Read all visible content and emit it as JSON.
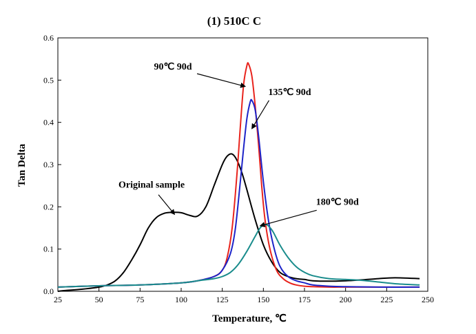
{
  "chart_data": {
    "type": "line",
    "title": "(1) 510C  C",
    "xlabel": "Temperature, ℃",
    "ylabel": "Tan Delta",
    "xlim": [
      25,
      250
    ],
    "ylim": [
      0,
      0.6
    ],
    "xticks": [
      25,
      50,
      75,
      100,
      125,
      150,
      175,
      200,
      225,
      250
    ],
    "yticks": [
      0.0,
      0.1,
      0.2,
      0.3,
      0.4,
      0.5,
      0.6
    ],
    "ytick_labels": [
      "0.0",
      "0.1",
      "0.2",
      "0.3",
      "0.4",
      "0.5",
      "0.6"
    ],
    "grid": false,
    "legend": "none",
    "series": [
      {
        "color": "#000000",
        "x": [
          25,
          30,
          40,
          50,
          55,
          60,
          65,
          70,
          75,
          80,
          85,
          90,
          95,
          100,
          105,
          110,
          115,
          120,
          125,
          128,
          131,
          134,
          137,
          140,
          145,
          150,
          155,
          160,
          165,
          170,
          175,
          180,
          190,
          200,
          210,
          220,
          230,
          245
        ],
        "y": [
          0.0,
          0.002,
          0.005,
          0.01,
          0.015,
          0.025,
          0.045,
          0.075,
          0.11,
          0.15,
          0.175,
          0.185,
          0.187,
          0.186,
          0.18,
          0.178,
          0.2,
          0.25,
          0.3,
          0.32,
          0.325,
          0.31,
          0.28,
          0.24,
          0.17,
          0.11,
          0.07,
          0.045,
          0.035,
          0.03,
          0.028,
          0.025,
          0.024,
          0.025,
          0.027,
          0.03,
          0.032,
          0.03
        ]
      },
      {
        "color": "#e8231c",
        "x": [
          25,
          50,
          75,
          100,
          110,
          120,
          125,
          128,
          131,
          134,
          136,
          138,
          140,
          141,
          143,
          145,
          147,
          149,
          151,
          154,
          158,
          162,
          166,
          170,
          175,
          180,
          190,
          200,
          220,
          245
        ],
        "y": [
          0.01,
          0.013,
          0.015,
          0.02,
          0.025,
          0.035,
          0.05,
          0.08,
          0.15,
          0.28,
          0.39,
          0.49,
          0.535,
          0.538,
          0.51,
          0.44,
          0.35,
          0.25,
          0.17,
          0.1,
          0.05,
          0.03,
          0.02,
          0.015,
          0.012,
          0.011,
          0.01,
          0.01,
          0.01,
          0.01
        ]
      },
      {
        "color": "#1c23c8",
        "x": [
          25,
          50,
          75,
          100,
          110,
          120,
          125,
          130,
          133,
          136,
          138,
          140,
          142,
          143,
          145,
          147,
          150,
          153,
          156,
          160,
          165,
          170,
          175,
          180,
          190,
          200,
          220,
          245
        ],
        "y": [
          0.01,
          0.013,
          0.015,
          0.02,
          0.025,
          0.035,
          0.05,
          0.09,
          0.15,
          0.26,
          0.34,
          0.41,
          0.448,
          0.452,
          0.43,
          0.37,
          0.26,
          0.17,
          0.11,
          0.06,
          0.035,
          0.025,
          0.02,
          0.015,
          0.012,
          0.011,
          0.01,
          0.01
        ]
      },
      {
        "color": "#1a8c8c",
        "x": [
          25,
          50,
          75,
          100,
          110,
          120,
          125,
          130,
          135,
          140,
          145,
          148,
          151,
          153,
          156,
          160,
          165,
          170,
          175,
          180,
          190,
          200,
          210,
          220,
          230,
          245
        ],
        "y": [
          0.01,
          0.013,
          0.015,
          0.02,
          0.025,
          0.03,
          0.035,
          0.045,
          0.065,
          0.095,
          0.13,
          0.15,
          0.158,
          0.155,
          0.14,
          0.11,
          0.08,
          0.058,
          0.045,
          0.037,
          0.03,
          0.028,
          0.026,
          0.022,
          0.018,
          0.015
        ]
      }
    ],
    "annotations": [
      {
        "text": "90℃  90d",
        "x": 95,
        "y": 0.525,
        "arrow_to": [
          139,
          0.485
        ]
      },
      {
        "text": "135℃  90d",
        "x": 166,
        "y": 0.465,
        "arrow_to": [
          143,
          0.385
        ]
      },
      {
        "text": "Original sample",
        "x": 82,
        "y": 0.245,
        "arrow_to": [
          96,
          0.182
        ]
      },
      {
        "text": "180℃  90d",
        "x": 195,
        "y": 0.205,
        "arrow_to": [
          148,
          0.155
        ]
      }
    ]
  }
}
